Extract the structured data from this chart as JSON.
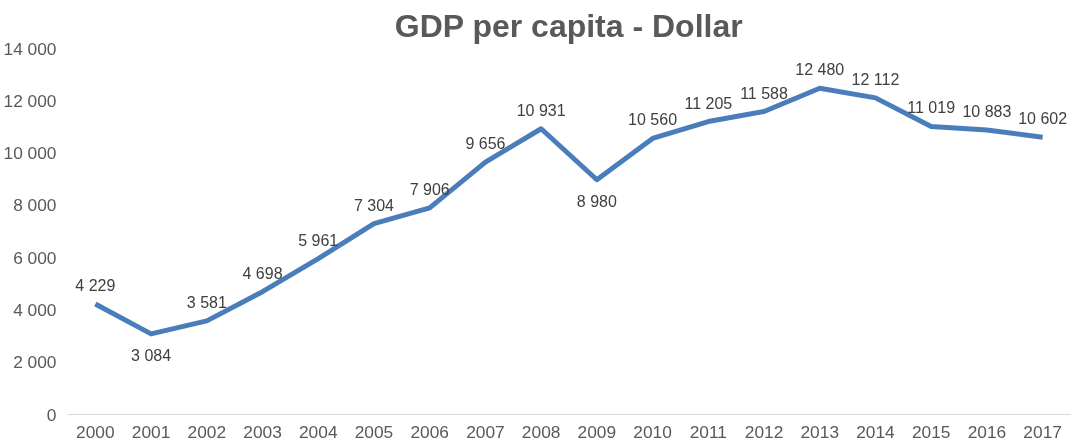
{
  "chart_data": {
    "type": "line",
    "title": "GDP per capita - Dollar",
    "categories": [
      "2000",
      "2001",
      "2002",
      "2003",
      "2004",
      "2005",
      "2006",
      "2007",
      "2008",
      "2009",
      "2010",
      "2011",
      "2012",
      "2013",
      "2014",
      "2015",
      "2016",
      "2017"
    ],
    "series": [
      {
        "color": "#4a7ebb",
        "values": [
          4229,
          3084,
          3581,
          4698,
          5961,
          7304,
          7906,
          9656,
          10931,
          8980,
          10560,
          11205,
          11588,
          12480,
          12112,
          11019,
          10883,
          10602
        ],
        "value_labels": [
          "4 229",
          "3 084",
          "3 581",
          "4 698",
          "5 961",
          "7 304",
          "7 906",
          "9 656",
          "10 931",
          "8 980",
          "10 560",
          "11 205",
          "11 588",
          "12 480",
          "12 112",
          "11 019",
          "10 883",
          "10 602"
        ]
      }
    ],
    "ylim": [
      0,
      14000
    ],
    "yticks": [
      {
        "value": 0,
        "label": "0"
      },
      {
        "value": 2000,
        "label": "2 000"
      },
      {
        "value": 4000,
        "label": "4 000"
      },
      {
        "value": 6000,
        "label": "6 000"
      },
      {
        "value": 8000,
        "label": "8 000"
      },
      {
        "value": 10000,
        "label": "10 000"
      },
      {
        "value": 12000,
        "label": "12 000"
      },
      {
        "value": 14000,
        "label": "14 000"
      }
    ],
    "grid": false,
    "marker": "none",
    "line_style": "solid"
  }
}
